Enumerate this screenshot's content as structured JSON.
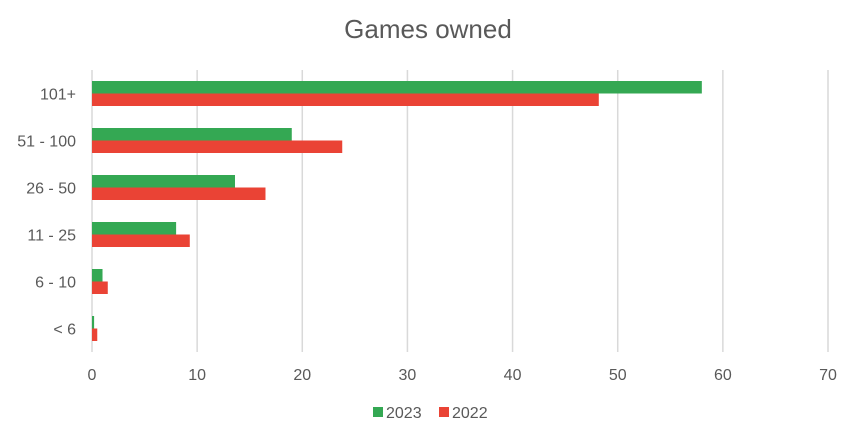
{
  "chart_data": {
    "type": "bar",
    "orientation": "horizontal",
    "title": "Games owned",
    "xlabel": "",
    "ylabel": "",
    "categories": [
      "101+",
      "51 - 100",
      "26 - 50",
      "11 - 25",
      "6 - 10",
      "< 6"
    ],
    "series": [
      {
        "name": "2023",
        "color": "#34a853",
        "values": [
          58,
          19,
          13.6,
          8,
          1,
          0.2
        ]
      },
      {
        "name": "2022",
        "color": "#ea4335",
        "values": [
          48.2,
          23.8,
          16.5,
          9.3,
          1.5,
          0.5
        ]
      }
    ],
    "xlim": [
      0,
      70
    ],
    "xticks": [
      "0",
      "10",
      "20",
      "30",
      "40",
      "50",
      "60",
      "70"
    ],
    "grid": true,
    "legend_position": "bottom"
  }
}
